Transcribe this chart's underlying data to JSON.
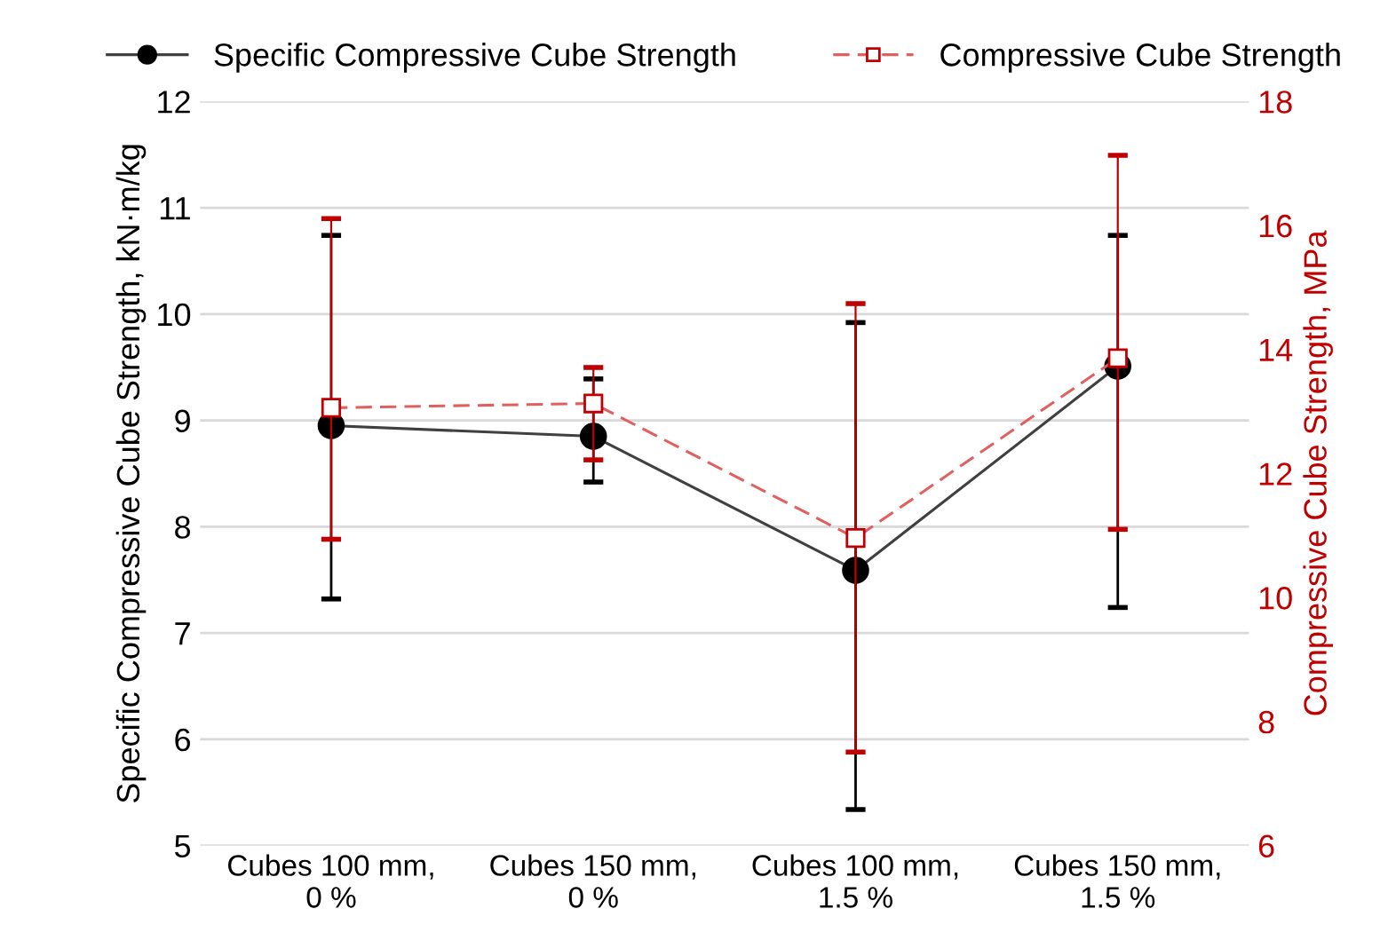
{
  "chart_data": {
    "type": "line",
    "categories": [
      "Cubes 100 mm,\n0 %",
      "Cubes 150 mm,\n0 %",
      "Cubes 100 mm,\n1.5 %",
      "Cubes 150 mm,\n1.5 %"
    ],
    "ylabel": "Specific Compressive Cube Strength, kN·m/kg",
    "y2label": "Compressive Cube Strength, MPa",
    "ylim": [
      5,
      12
    ],
    "yticks": [
      5,
      6,
      7,
      8,
      9,
      10,
      11,
      12
    ],
    "y2lim": [
      6,
      18
    ],
    "y2ticks": [
      6,
      8,
      10,
      12,
      14,
      16,
      18
    ],
    "grid": "y",
    "legend": "top",
    "series": [
      {
        "name": "Specific Compressive Cube Strength",
        "color": "#000000",
        "marker": "circle",
        "line_style": "solid",
        "values": [
          8.95,
          8.85,
          7.59,
          9.51
        ],
        "errors": [
          [
            7.32,
            10.74
          ],
          [
            8.42,
            9.39
          ],
          [
            5.34,
            9.92
          ],
          [
            7.24,
            10.74
          ]
        ]
      },
      {
        "name": "Compressive Cube Strength",
        "color": "#c00000",
        "marker": "square",
        "line_style": "dashed",
        "axis": "y2",
        "values": [
          13.06,
          13.13,
          10.96,
          13.86
        ],
        "errors": [
          [
            10.94,
            16.11
          ],
          [
            12.22,
            13.71
          ],
          [
            7.51,
            14.74
          ],
          [
            11.1,
            17.13
          ]
        ]
      }
    ]
  }
}
